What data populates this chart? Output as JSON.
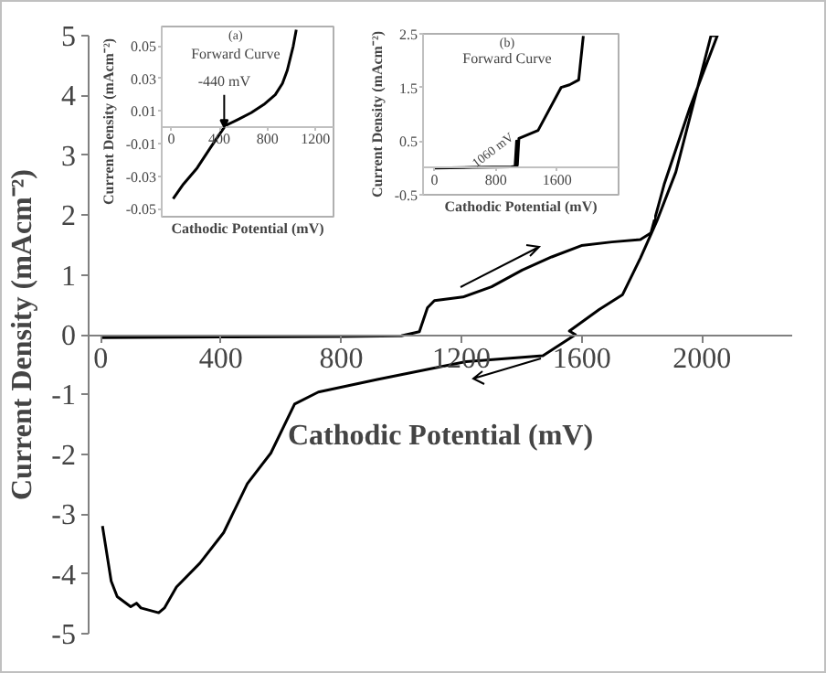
{
  "chart_data": [
    {
      "type": "line",
      "xlabel": "Cathodic Potential (mV)",
      "ylabel": "Current Density (mAcm⁻²)",
      "xlim": [
        -40,
        2300
      ],
      "ylim": [
        -5,
        5
      ],
      "xticks": [
        0,
        400,
        800,
        1200,
        1600,
        2000
      ],
      "yticks": [
        -5,
        -4,
        -3,
        -2,
        -1,
        0,
        1,
        2,
        3,
        4,
        5
      ],
      "series": [
        {
          "color": "#000000",
          "x": [
            0,
            400,
            800,
            1000,
            1060,
            1087,
            1110,
            1205,
            1300,
            1402,
            1500,
            1599,
            1700,
            1795,
            1830,
            1874,
            1960,
            2051,
            2030,
            1913,
            1850,
            1795,
            1736,
            1658,
            1559,
            1579,
            1471,
            1215,
            920,
            724,
            645,
            566,
            488,
            409,
            330,
            252,
            212,
            193,
            134,
            119,
            100,
            55,
            35,
            6
          ],
          "values": [
            -0.05,
            -0.04,
            -0.03,
            -0.02,
            0.05,
            0.45,
            0.57,
            0.63,
            0.8,
            1.08,
            1.3,
            1.49,
            1.55,
            1.59,
            1.7,
            2.51,
            3.8,
            5.0,
            5.0,
            2.72,
            1.9,
            1.28,
            0.67,
            0.42,
            0.06,
            0.0,
            -0.35,
            -0.45,
            -0.75,
            -0.96,
            -1.16,
            -1.98,
            -2.49,
            -3.31,
            -3.82,
            -4.22,
            -4.57,
            -4.65,
            -4.57,
            -4.49,
            -4.55,
            -4.38,
            -4.12,
            -3.2
          ]
        }
      ]
    },
    {
      "type": "line",
      "title": "(a)",
      "subtitle": "Forward Curve",
      "xlabel": "Cathodic Potential (mV)",
      "ylabel": "Current Density (mAcm⁻²)",
      "xlim": [
        -80,
        1350
      ],
      "ylim": [
        -0.055,
        0.062
      ],
      "xticks": [
        0,
        400,
        800,
        1200
      ],
      "yticks": [
        -0.05,
        -0.03,
        -0.01,
        0.01,
        0.03,
        0.05
      ],
      "annotations": [
        {
          "text": "-440 mV",
          "x": 440,
          "y": 0
        }
      ],
      "series": [
        {
          "color": "#000000",
          "x": [
            15,
            100,
            215,
            330,
            450,
            560,
            665,
            770,
            865,
            925,
            965,
            1015,
            1040
          ],
          "values": [
            -0.044,
            -0.035,
            -0.025,
            -0.012,
            0.001,
            0.005,
            0.009,
            0.014,
            0.02,
            0.027,
            0.035,
            0.05,
            0.06
          ]
        }
      ]
    },
    {
      "type": "line",
      "title": "(b)",
      "subtitle": "Forward Curve",
      "xlabel": "Cathodic Potential (mV)",
      "ylabel": "Current Density (mAcm⁻²)",
      "xlim": [
        -150,
        2400
      ],
      "ylim": [
        -0.5,
        2.5
      ],
      "xticks": [
        0,
        800,
        1600
      ],
      "yticks": [
        -0.5,
        0.5,
        1.5,
        2.5
      ],
      "annotations": [
        {
          "text": "1060 mV",
          "x": 1060,
          "y": 0.6
        }
      ],
      "series": [
        {
          "color": "#000000",
          "x": [
            0,
            500,
            1000,
            1050,
            1070,
            1080,
            1100,
            1350,
            1650,
            1760,
            1880,
            1940
          ],
          "values": [
            0.0,
            0.01,
            0.02,
            0.03,
            0.5,
            0.05,
            0.55,
            0.7,
            1.5,
            1.55,
            1.64,
            2.46
          ]
        }
      ]
    }
  ]
}
